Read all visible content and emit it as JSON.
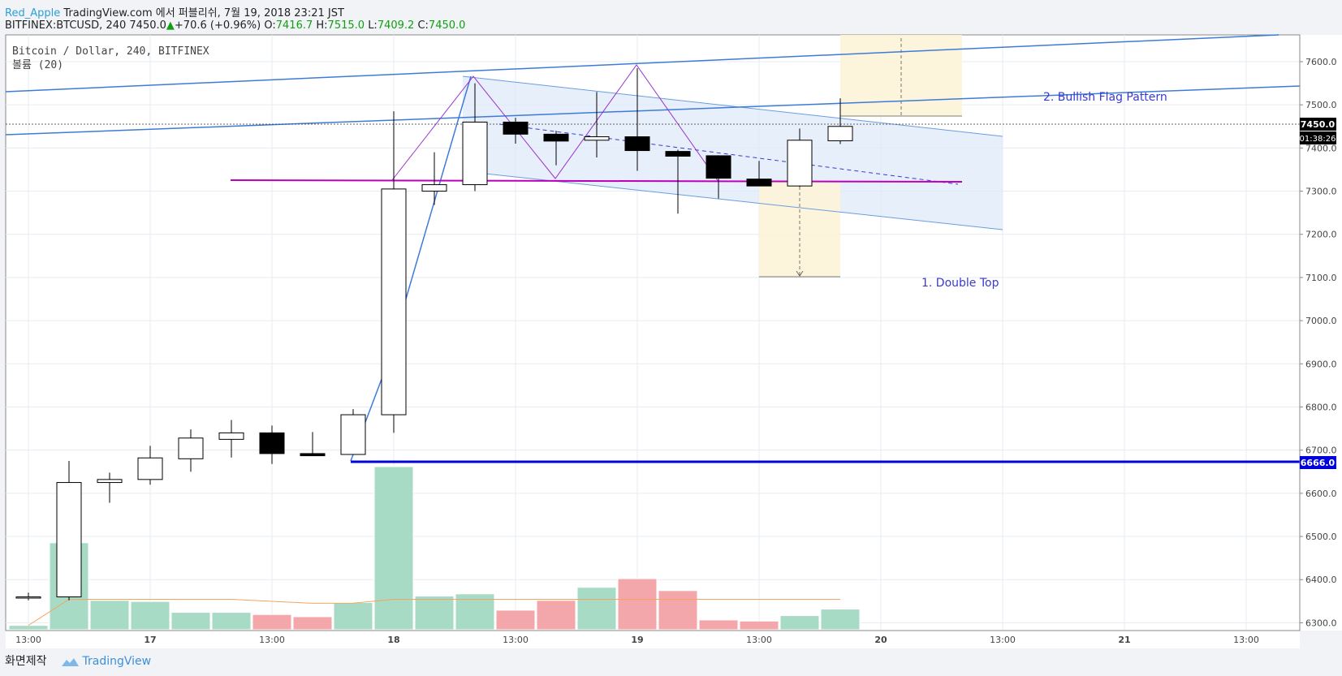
{
  "header": {
    "user": "Red_Apple",
    "published": "TradingView.com 에서 퍼블리쉬, 7월 19, 2018 23:21 JST",
    "symbol": "BITFINEX:BTCUSD, 240",
    "last": "7450.0",
    "arrow": "▲",
    "change": "+70.6 (+0.96%)",
    "o_label": "O:",
    "o_value": "7416.7",
    "h_label": "H:",
    "h_value": "7515.0",
    "l_label": "L:",
    "l_value": "7409.2",
    "c_label": "C:",
    "c_value": "7450.0"
  },
  "legend": {
    "title": "Bitcoin / Dollar, 240, BITFINEX",
    "volume": "볼륨 (20)"
  },
  "annotations": {
    "flag": "2. Bullish Flag Pattern",
    "double_top": "1. Double Top"
  },
  "price_labels": {
    "current": "7450.0",
    "countdown": "01:38:26",
    "level": "6666.0"
  },
  "footer": {
    "made_by": "화면제작",
    "brand": "TradingView"
  },
  "colors": {
    "up_volume": "#a8dbc5",
    "down_volume": "#f4a7ab",
    "trendline": "#3d7bd9",
    "level_line": "#0000dd",
    "pattern": "#9932cc",
    "neckline": "#bb00bb",
    "flag_fill": "#dfeaf9",
    "target_fill": "#fdf3d8",
    "volume_ma": "#f4a460"
  },
  "chart_data": {
    "type": "candlestick",
    "ylim": [
      6282,
      7662
    ],
    "y_ticks": [
      6300,
      6400,
      6500,
      6600,
      6700,
      6800,
      6900,
      7000,
      7100,
      7200,
      7300,
      7400,
      7500,
      7600
    ],
    "y_tick_labels": [
      "6300.0",
      "6400.0",
      "6500.0",
      "6600.0",
      "6700.0",
      "6800.0",
      "6900.0",
      "7000.0",
      "7100.0",
      "7200.0",
      "7300.0",
      "7400.0",
      "7500.0",
      "7600.0"
    ],
    "x_tick_labels": [
      "13:00",
      "17",
      "13:00",
      "18",
      "13:00",
      "19",
      "13:00",
      "20",
      "13:00",
      "21",
      "13:00"
    ],
    "candles": [
      {
        "o": 6360,
        "h": 6370,
        "l": 6352,
        "c": 6360,
        "v": 4
      },
      {
        "o": 6360,
        "h": 6675,
        "l": 6352,
        "c": 6625,
        "v": 80
      },
      {
        "o": 6625,
        "h": 6648,
        "l": 6578,
        "c": 6632,
        "v": 27
      },
      {
        "o": 6632,
        "h": 6710,
        "l": 6620,
        "c": 6682,
        "v": 26
      },
      {
        "o": 6680,
        "h": 6748,
        "l": 6650,
        "c": 6728,
        "v": 16
      },
      {
        "o": 6725,
        "h": 6770,
        "l": 6683,
        "c": 6740,
        "v": 16
      },
      {
        "o": 6740,
        "h": 6757,
        "l": 6668,
        "c": 6692,
        "v": 14
      },
      {
        "o": 6692,
        "h": 6742,
        "l": 6687,
        "c": 6687,
        "v": 12
      },
      {
        "o": 6690,
        "h": 6795,
        "l": 6690,
        "c": 6782,
        "v": 25
      },
      {
        "o": 6782,
        "h": 7485,
        "l": 6740,
        "c": 7305,
        "v": 150
      },
      {
        "o": 7300,
        "h": 7390,
        "l": 7268,
        "c": 7315,
        "v": 31
      },
      {
        "o": 7315,
        "h": 7550,
        "l": 7300,
        "c": 7460,
        "v": 33
      },
      {
        "o": 7460,
        "h": 7470,
        "l": 7410,
        "c": 7432,
        "v": 18
      },
      {
        "o": 7432,
        "h": 7440,
        "l": 7360,
        "c": 7416,
        "v": 27
      },
      {
        "o": 7418,
        "h": 7530,
        "l": 7378,
        "c": 7426,
        "v": 39
      },
      {
        "o": 7426,
        "h": 7585,
        "l": 7347,
        "c": 7394,
        "v": 47
      },
      {
        "o": 7392,
        "h": 7396,
        "l": 7248,
        "c": 7381,
        "v": 36
      },
      {
        "o": 7382,
        "h": 7383,
        "l": 7283,
        "c": 7330,
        "v": 9
      },
      {
        "o": 7328,
        "h": 7370,
        "l": 7315,
        "c": 7312,
        "v": 8
      },
      {
        "o": 7312,
        "h": 7445,
        "l": 7310,
        "c": 7418,
        "v": 13
      },
      {
        "o": 7416.7,
        "h": 7515,
        "l": 7409.2,
        "c": 7450,
        "v": 19
      }
    ],
    "volume_up": [
      true,
      true,
      true,
      true,
      true,
      true,
      false,
      false,
      true,
      true,
      true,
      true,
      false,
      false,
      true,
      false,
      false,
      false,
      false,
      true,
      true
    ],
    "horizontal_level": 6666,
    "current_price": 7450
  }
}
